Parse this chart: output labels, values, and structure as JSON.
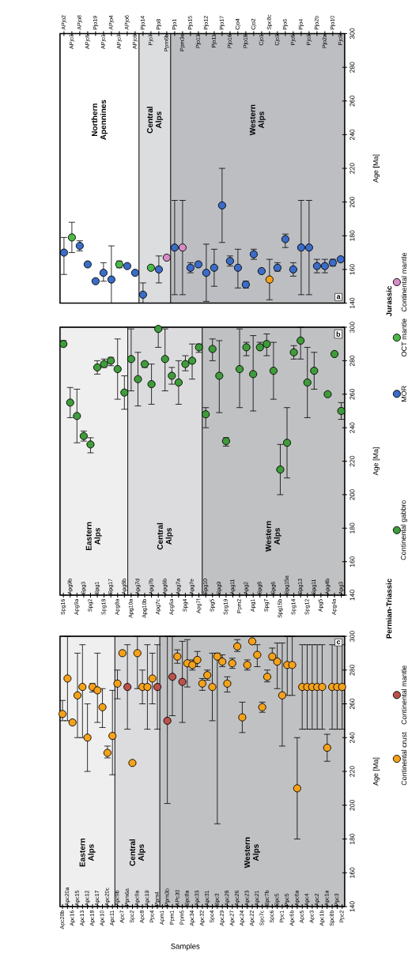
{
  "chart_data": [
    {
      "type": "scatter",
      "marker": "circle",
      "ylim": [
        140,
        300
      ],
      "yticks": [
        140,
        160,
        180,
        200,
        220,
        240,
        260,
        280,
        300
      ],
      "ylabel": "Age [Ma]",
      "legend": "right",
      "legend_title": "Jurassic",
      "annotations": [
        "a"
      ],
      "categories": [
        "APjo2",
        "APjo3",
        "APjo8",
        "APjo5",
        "Pjo19",
        "APjo1",
        "APjo4",
        "APjo7",
        "APjo6",
        "APjo9",
        "Pjo14",
        "Pjo7",
        "Pjo8",
        "Ppm6b",
        "Pjo1",
        "Ppm3c",
        "Pjo15",
        "Pjo13",
        "Pjo12",
        "Pjo11",
        "Pjo17",
        "Pjo16",
        "Cjo4",
        "Pjo18",
        "Cjo2",
        "Cjo1",
        "Spc8c",
        "Cjo3",
        "Pjo6",
        "Pjo5",
        "Pjo4",
        "Pjo3",
        "Pjo2b",
        "Pjo2a",
        "Pjo10",
        "Pjo9"
      ],
      "bands": [
        {
          "axis": "x",
          "from": "APjo2",
          "to": "APjo9",
          "label": "Northern Apennines",
          "color": "#ffffff"
        },
        {
          "axis": "x",
          "from": "Pjo14",
          "to": "Ppm6b",
          "label": "Central Alps",
          "color": "#dcdddf"
        },
        {
          "axis": "x",
          "from": "Pjo1",
          "to": "Pjo9",
          "label": "Western Alps",
          "color": "#bdbec1"
        }
      ],
      "series": [
        {
          "name": "MOR",
          "color": "#3b6cc6",
          "values": [
            170,
            null,
            174,
            163,
            153,
            158,
            154,
            null,
            162,
            158,
            145,
            null,
            160,
            null,
            173,
            null,
            161,
            163,
            158,
            161,
            198,
            165,
            161,
            151,
            169,
            159,
            null,
            161,
            178,
            160,
            173,
            173,
            162,
            162,
            164,
            166
          ],
          "errors": [
            [
              157,
              179
            ],
            null,
            [
              171,
              177
            ],
            null,
            null,
            [
              153,
              164
            ],
            [
              140,
              174
            ],
            null,
            null,
            null,
            [
              140,
              152
            ],
            null,
            [
              152,
              168
            ],
            null,
            [
              145,
              201
            ],
            null,
            [
              158,
              164
            ],
            null,
            [
              141,
              175
            ],
            [
              150,
              172
            ],
            [
              176,
              220
            ],
            [
              162,
              168
            ],
            [
              149,
              172
            ],
            [
              149,
              153
            ],
            [
              166,
              172
            ],
            null,
            null,
            [
              159,
              164
            ],
            [
              173,
              181
            ],
            [
              156,
              164
            ],
            [
              145,
              201
            ],
            [
              145,
              201
            ],
            [
              158,
              166
            ],
            [
              158,
              166
            ],
            [
              162,
              166
            ],
            null
          ]
        },
        {
          "name": "OCT mantle",
          "color": "#4db848",
          "values": [
            null,
            179,
            null,
            null,
            null,
            null,
            null,
            163,
            null,
            null,
            null,
            161,
            null,
            null,
            null,
            null,
            null,
            null,
            null,
            null,
            null,
            null,
            null,
            null,
            null,
            null,
            null,
            null,
            null,
            null,
            null,
            null,
            null,
            null,
            null,
            null
          ],
          "errors": [
            null,
            [
              170,
              188
            ],
            null,
            null,
            null,
            null,
            null,
            [
              161,
              165
            ],
            null,
            null,
            null,
            null,
            null,
            null,
            null,
            null,
            null,
            null,
            null,
            null,
            null,
            null,
            null,
            null,
            null,
            null,
            null,
            null,
            null,
            null,
            null,
            null,
            null,
            null,
            null,
            null
          ]
        },
        {
          "name": "Continental mantle",
          "color": "#d68cc4",
          "values": [
            null,
            null,
            null,
            null,
            null,
            null,
            null,
            null,
            null,
            null,
            null,
            null,
            null,
            167,
            null,
            173,
            null,
            null,
            null,
            null,
            null,
            null,
            null,
            null,
            null,
            null,
            null,
            null,
            null,
            null,
            null,
            null,
            null,
            null,
            null,
            null
          ],
          "errors": [
            null,
            null,
            null,
            null,
            null,
            null,
            null,
            null,
            null,
            null,
            null,
            null,
            null,
            null,
            null,
            [
              145,
              201
            ],
            null,
            null,
            null,
            null,
            null,
            null,
            null,
            null,
            null,
            null,
            null,
            null,
            null,
            null,
            null,
            null,
            null,
            null,
            null,
            null
          ]
        },
        {
          "color": "#f5a21b",
          "values": [
            null,
            null,
            null,
            null,
            null,
            null,
            null,
            null,
            null,
            null,
            null,
            null,
            null,
            null,
            null,
            null,
            null,
            null,
            null,
            null,
            null,
            null,
            null,
            null,
            null,
            null,
            154,
            null,
            null,
            null,
            null,
            null,
            null,
            null,
            null,
            null
          ],
          "errors": [
            null,
            null,
            null,
            null,
            null,
            null,
            null,
            null,
            null,
            null,
            null,
            null,
            null,
            null,
            null,
            null,
            null,
            null,
            null,
            null,
            null,
            null,
            null,
            null,
            null,
            null,
            [
              142,
              166
            ],
            null,
            null,
            null,
            null,
            null,
            null,
            null,
            null,
            null
          ]
        }
      ]
    },
    {
      "type": "scatter",
      "marker": "circle",
      "ylim": [
        140,
        300
      ],
      "yticks": [
        140,
        160,
        180,
        200,
        220,
        240,
        260,
        280,
        300
      ],
      "ylabel": "Age [Ma]",
      "legend": "right",
      "annotations": [
        "b"
      ],
      "categories": [
        "Spg16",
        "Apg9b",
        "Apg9a",
        "Spg3",
        "Spg2",
        "Spg1",
        "Spg18",
        "Spg17",
        "Apg8a",
        "Apg8b",
        "Apg10a",
        "Apg7d",
        "Apg10b",
        "Apg7b",
        "Apg7c",
        "Apg6b",
        "Apg6a",
        "Apg7a",
        "Spg4",
        "Apg7e",
        "Apg7f",
        "Spg10",
        "Spg5",
        "Spg9",
        "Spg19",
        "Apg11",
        "Ppm2",
        "Apg2",
        "Apg1",
        "Spg8",
        "Spg7",
        "Spg6",
        "Spg15b",
        "Spg15a",
        "Spg14",
        "Spg13",
        "Spg12",
        "Spg11",
        "Apg5",
        "Apg4b",
        "Apg4a",
        "Apg3"
      ],
      "bands": [
        {
          "axis": "x",
          "from": "Spg16",
          "to": "Apg8b",
          "label": "Eastern Alps",
          "color": "#efefef"
        },
        {
          "axis": "x",
          "from": "Apg10a",
          "to": "Apg7f",
          "label": "Central Alps",
          "color": "#dcdcde"
        },
        {
          "axis": "x",
          "from": "Spg10",
          "to": "Apg3",
          "label": "Western Alps",
          "color": "#c0c1c3"
        }
      ],
      "series": [
        {
          "name": "Continental gabbro",
          "color": "#3f9c3a",
          "values": [
            290,
            255,
            247,
            235,
            230,
            276,
            278,
            280,
            275,
            261,
            281,
            269,
            278,
            266,
            299,
            281,
            271,
            267,
            278,
            280,
            288,
            248,
            287,
            271,
            232,
            null,
            275,
            288,
            272,
            288,
            290,
            274,
            215,
            231,
            285,
            292,
            267,
            274,
            null,
            260,
            284,
            250
          ],
          "errors": [
            [
              289,
              292
            ],
            [
              246,
              264
            ],
            [
              231,
              263
            ],
            [
              232,
              238
            ],
            [
              225,
              234
            ],
            [
              272,
              280
            ],
            [
              276,
              281
            ],
            [
              277,
              282
            ],
            [
              257,
              293
            ],
            [
              251,
              271
            ],
            [
              262,
              299
            ],
            [
              253,
              285
            ],
            [
              276,
              279
            ],
            [
              254,
              278
            ],
            [
              288,
              300
            ],
            [
              262,
              299
            ],
            [
              266,
              276
            ],
            [
              254,
              280
            ],
            [
              274,
              283
            ],
            [
              269,
              290
            ],
            [
              285,
              290
            ],
            [
              240,
              252
            ],
            [
              280,
              293
            ],
            [
              249,
              292
            ],
            [
              229,
              234
            ],
            null,
            [
              252,
              299
            ],
            [
              283,
              291
            ],
            [
              250,
              295
            ],
            [
              287,
              291
            ],
            [
              283,
              296
            ],
            [
              257,
              291
            ],
            [
              200,
              230
            ],
            [
              210,
              252
            ],
            [
              281,
              289
            ],
            [
              281,
              300
            ],
            [
              246,
              288
            ],
            [
              263,
              285
            ],
            null,
            null,
            null,
            [
              245,
              255
            ]
          ]
        }
      ]
    },
    {
      "type": "scatter",
      "marker": "circle",
      "ylim": [
        140,
        300
      ],
      "yticks": [
        140,
        160,
        180,
        200,
        220,
        240,
        260,
        280,
        300
      ],
      "ylabel": "Age [Ma]",
      "xlabel": "Samples",
      "legend": "right",
      "legend_title": "Permian-Triassic",
      "annotations": [
        "c"
      ],
      "categories": [
        "Apc20b",
        "Apc20a",
        "Apc16",
        "Apc15",
        "Apc13",
        "Apc12",
        "Apc18",
        "Apc17",
        "Apc10",
        "Apc20c",
        "Apc11",
        "Apc9b",
        "Apc7",
        "Ppm6a",
        "Spc2",
        "Apc9a",
        "Apc8",
        "Apc19",
        "Ppc4",
        "Ppm4",
        "Apm1",
        "Ppm3b",
        "Ppm1",
        "APc30",
        "Ppm5",
        "Spc8a",
        "Apc34",
        "Apc33",
        "Apc32",
        "Apc31",
        "Spc4",
        "Spc3",
        "Apc29",
        "Apc28",
        "Apc27",
        "Apc26",
        "Apc24",
        "Apc23",
        "Apc22",
        "Apc21",
        "Spc7c",
        "Spc7b",
        "Spc6",
        "Spc5",
        "Ppc1",
        "Ppc5",
        "Apc6b",
        "Apc6a",
        "Apc5",
        "Apc4",
        "Apc3",
        "Apc2",
        "Apc1b",
        "Apc1a",
        "Spc8b",
        "Ppc3",
        "Ppc2"
      ],
      "bands": [
        {
          "axis": "x",
          "from": "Apc20b",
          "to": "Apc11",
          "label": "Eastern Alps",
          "color": "#efefef"
        },
        {
          "axis": "x",
          "from": "Apc9b",
          "to": "Ppm4",
          "label": "Central Alps",
          "color": "#dcdcde"
        },
        {
          "axis": "x",
          "from": "Apm1",
          "to": "Ppc2",
          "label": "Western Alps",
          "color": "#c0c1c3"
        }
      ],
      "series": [
        {
          "name": "Continental crust",
          "color": "#f5a21b",
          "values": [
            254,
            275,
            249,
            265,
            270,
            240,
            270,
            268,
            258,
            231,
            241,
            272,
            290,
            null,
            225,
            290,
            270,
            270,
            275,
            null,
            null,
            null,
            null,
            288,
            null,
            284,
            283,
            286,
            272,
            277,
            270,
            288,
            285,
            272,
            284,
            294,
            252,
            283,
            297,
            289,
            258,
            276,
            288,
            285,
            265,
            283,
            283,
            210,
            270,
            270,
            270,
            270,
            270,
            234,
            270,
            270,
            270
          ],
          "errors": [
            [
              250,
              262
            ],
            [
              250,
              300
            ],
            null,
            [
              240,
              290
            ],
            [
              240,
              295
            ],
            [
              220,
              260
            ],
            [
              267,
              272
            ],
            [
              249,
              290
            ],
            [
              246,
              269
            ],
            [
              228,
              235
            ],
            [
              218,
              268
            ],
            [
              263,
              280
            ],
            null,
            null,
            null,
            [
              269,
              300
            ],
            [
              260,
              280
            ],
            [
              245,
              295
            ],
            [
              260,
              290
            ],
            null,
            null,
            null,
            null,
            [
              284,
              292
            ],
            null,
            [
              270,
              298
            ],
            [
              280,
              286
            ],
            [
              282,
              291
            ],
            [
              268,
              275
            ],
            [
              274,
              280
            ],
            [
              250,
              290
            ],
            [
              189,
              290
            ],
            [
              282,
              289
            ],
            [
              267,
              276
            ],
            [
              281,
              287
            ],
            [
              291,
              298
            ],
            [
              243,
              261
            ],
            [
              280,
              286
            ],
            null,
            [
              282,
              295
            ],
            [
              255,
              261
            ],
            [
              273,
              280
            ],
            [
              286,
              293
            ],
            [
              269,
              296
            ],
            [
              235,
              296
            ],
            [
              265,
              300
            ],
            [
              265,
              300
            ],
            [
              180,
              240
            ],
            [
              245,
              295
            ],
            [
              245,
              295
            ],
            [
              245,
              295
            ],
            [
              245,
              295
            ],
            [
              245,
              295
            ],
            [
              226,
              242
            ],
            [
              245,
              295
            ],
            [
              245,
              295
            ],
            [
              245,
              295
            ]
          ]
        },
        {
          "name": "Continental mantle",
          "color": "#b9524b",
          "values": [
            null,
            null,
            null,
            null,
            null,
            null,
            null,
            null,
            null,
            null,
            null,
            null,
            null,
            270,
            null,
            null,
            null,
            null,
            null,
            270,
            null,
            250,
            276,
            null,
            273,
            null,
            null,
            null,
            null,
            null,
            null,
            null,
            null,
            null,
            null,
            null,
            null,
            null,
            null,
            null,
            null,
            null,
            null,
            null,
            null,
            null,
            null,
            null,
            null,
            null,
            null,
            null,
            null,
            null,
            null,
            null,
            null
          ],
          "errors": [
            null,
            null,
            null,
            null,
            null,
            null,
            null,
            null,
            null,
            null,
            null,
            null,
            null,
            [
              245,
              295
            ],
            null,
            null,
            null,
            null,
            null,
            [
              245,
              295
            ],
            null,
            [
              201,
              300
            ],
            [
              253,
              300
            ],
            null,
            [
              249,
              297
            ],
            null,
            null,
            null,
            null,
            null,
            null,
            null,
            null,
            null,
            null,
            null,
            null,
            null,
            null,
            null,
            null,
            null,
            null,
            null,
            null,
            null,
            null,
            null,
            null,
            null,
            null,
            null,
            null,
            null,
            null,
            null,
            null
          ]
        }
      ]
    }
  ]
}
